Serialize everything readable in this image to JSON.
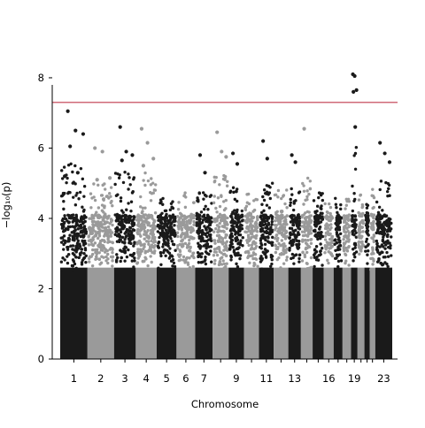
{
  "chart_data": {
    "type": "scatter",
    "subtype": "manhattan",
    "title": "",
    "xlabel": "Chromosome",
    "ylabel": "−log₁₀(p)",
    "ylim": [
      0,
      8.2
    ],
    "yticks": [
      0,
      2,
      4,
      6,
      8
    ],
    "grid": false,
    "legend": "none",
    "threshold": {
      "value": 7.3,
      "color": "#c0394b"
    },
    "series_colors": [
      "#1a1a1a",
      "#9a9a9a"
    ],
    "chromosomes": [
      {
        "chr": "1",
        "label": "1",
        "length": 249,
        "max": 7.05
      },
      {
        "chr": "2",
        "label": "2",
        "length": 243,
        "max": 6.0
      },
      {
        "chr": "3",
        "label": "3",
        "length": 198,
        "max": 6.6
      },
      {
        "chr": "4",
        "label": "4",
        "length": 191,
        "max": 6.55
      },
      {
        "chr": "5",
        "label": "5",
        "length": 181,
        "max": 5.4
      },
      {
        "chr": "6",
        "label": "6",
        "length": 171,
        "max": 5.55
      },
      {
        "chr": "7",
        "label": "7",
        "length": 159,
        "max": 5.8
      },
      {
        "chr": "8",
        "label": "",
        "length": 146,
        "max": 6.45
      },
      {
        "chr": "9",
        "label": "9",
        "length": 141,
        "max": 5.85
      },
      {
        "chr": "10",
        "label": "",
        "length": 136,
        "max": 5.5
      },
      {
        "chr": "11",
        "label": "11",
        "length": 135,
        "max": 6.2
      },
      {
        "chr": "12",
        "label": "",
        "length": 133,
        "max": 5.7
      },
      {
        "chr": "13",
        "label": "13",
        "length": 115,
        "max": 5.8
      },
      {
        "chr": "14",
        "label": "",
        "length": 107,
        "max": 6.55
      },
      {
        "chr": "15",
        "label": "",
        "length": 102,
        "max": 5.6
      },
      {
        "chr": "16",
        "label": "16",
        "length": 90,
        "max": 5.3
      },
      {
        "chr": "17",
        "label": "",
        "length": 81,
        "max": 5.3
      },
      {
        "chr": "18",
        "label": "",
        "length": 78,
        "max": 5.2
      },
      {
        "chr": "19",
        "label": "19",
        "length": 59,
        "max": 8.1
      },
      {
        "chr": "20",
        "label": "",
        "length": 63,
        "max": 5.6
      },
      {
        "chr": "21",
        "label": "",
        "length": 48,
        "max": 5.3
      },
      {
        "chr": "22",
        "label": "",
        "length": 51,
        "max": 5.8
      },
      {
        "chr": "23",
        "label": "23",
        "length": 155,
        "max": 6.15
      }
    ],
    "highlighted_points": [
      {
        "chr": "1",
        "y": [
          7.05,
          6.5,
          6.4,
          6.05,
          5.3,
          5.2
        ]
      },
      {
        "chr": "2",
        "y": [
          6.0,
          5.9,
          5.15,
          5.1
        ]
      },
      {
        "chr": "3",
        "y": [
          6.6,
          5.9,
          5.8,
          5.65
        ]
      },
      {
        "chr": "4",
        "y": [
          6.55,
          6.15,
          5.7,
          5.5
        ]
      },
      {
        "chr": "7",
        "y": [
          5.8,
          5.3
        ]
      },
      {
        "chr": "8",
        "y": [
          6.45,
          5.9,
          5.75
        ]
      },
      {
        "chr": "9",
        "y": [
          5.85,
          5.55
        ]
      },
      {
        "chr": "11",
        "y": [
          6.2,
          5.7
        ]
      },
      {
        "chr": "13",
        "y": [
          5.8,
          5.6
        ]
      },
      {
        "chr": "14",
        "y": [
          6.55
        ]
      },
      {
        "chr": "19",
        "y": [
          8.1,
          8.05,
          7.65,
          7.6,
          6.6
        ]
      },
      {
        "chr": "23",
        "y": [
          6.15,
          5.85,
          5.6
        ]
      }
    ]
  }
}
